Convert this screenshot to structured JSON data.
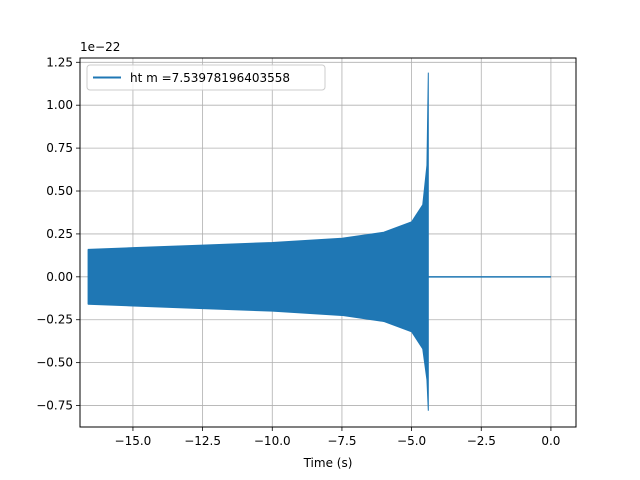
{
  "chart_data": {
    "type": "line",
    "xlabel": "Time (s)",
    "ylabel": "",
    "offset_text": "1e−22",
    "xlim": [
      -16.9,
      0.9
    ],
    "ylim": [
      -0.875,
      1.275
    ],
    "xticks": [
      -15.0,
      -12.5,
      -10.0,
      -7.5,
      -5.0,
      -2.5,
      0.0
    ],
    "xtick_labels": [
      "−15.0",
      "−12.5",
      "−10.0",
      "−7.5",
      "−5.0",
      "−2.5",
      "0.0"
    ],
    "yticks": [
      -0.75,
      -0.5,
      -0.25,
      0.0,
      0.25,
      0.5,
      0.75,
      1.0,
      1.25
    ],
    "ytick_labels": [
      "−0.75",
      "−0.50",
      "−0.25",
      "0.00",
      "0.25",
      "0.50",
      "0.75",
      "1.00",
      "1.25"
    ],
    "grid": true,
    "legend_position": "top-left",
    "series": [
      {
        "name": "ht m =7.53978196403558",
        "color": "#1f77b4",
        "description_points": {
          "upper_envelope": [
            [
              -16.6,
              0.16
            ],
            [
              -15.0,
              0.17
            ],
            [
              -12.5,
              0.185
            ],
            [
              -10.0,
              0.2
            ],
            [
              -7.5,
              0.225
            ],
            [
              -6.0,
              0.26
            ],
            [
              -5.0,
              0.32
            ],
            [
              -4.6,
              0.42
            ],
            [
              -4.45,
              0.65
            ],
            [
              -4.4,
              1.19
            ]
          ],
          "lower_envelope": [
            [
              -16.6,
              -0.16
            ],
            [
              -15.0,
              -0.17
            ],
            [
              -12.5,
              -0.185
            ],
            [
              -10.0,
              -0.2
            ],
            [
              -7.5,
              -0.225
            ],
            [
              -6.0,
              -0.26
            ],
            [
              -5.0,
              -0.32
            ],
            [
              -4.6,
              -0.42
            ],
            [
              -4.45,
              -0.6
            ],
            [
              -4.4,
              -0.78
            ]
          ],
          "start_x": -16.6,
          "merger_x": -4.4,
          "end_x": 0.0
        }
      }
    ]
  }
}
